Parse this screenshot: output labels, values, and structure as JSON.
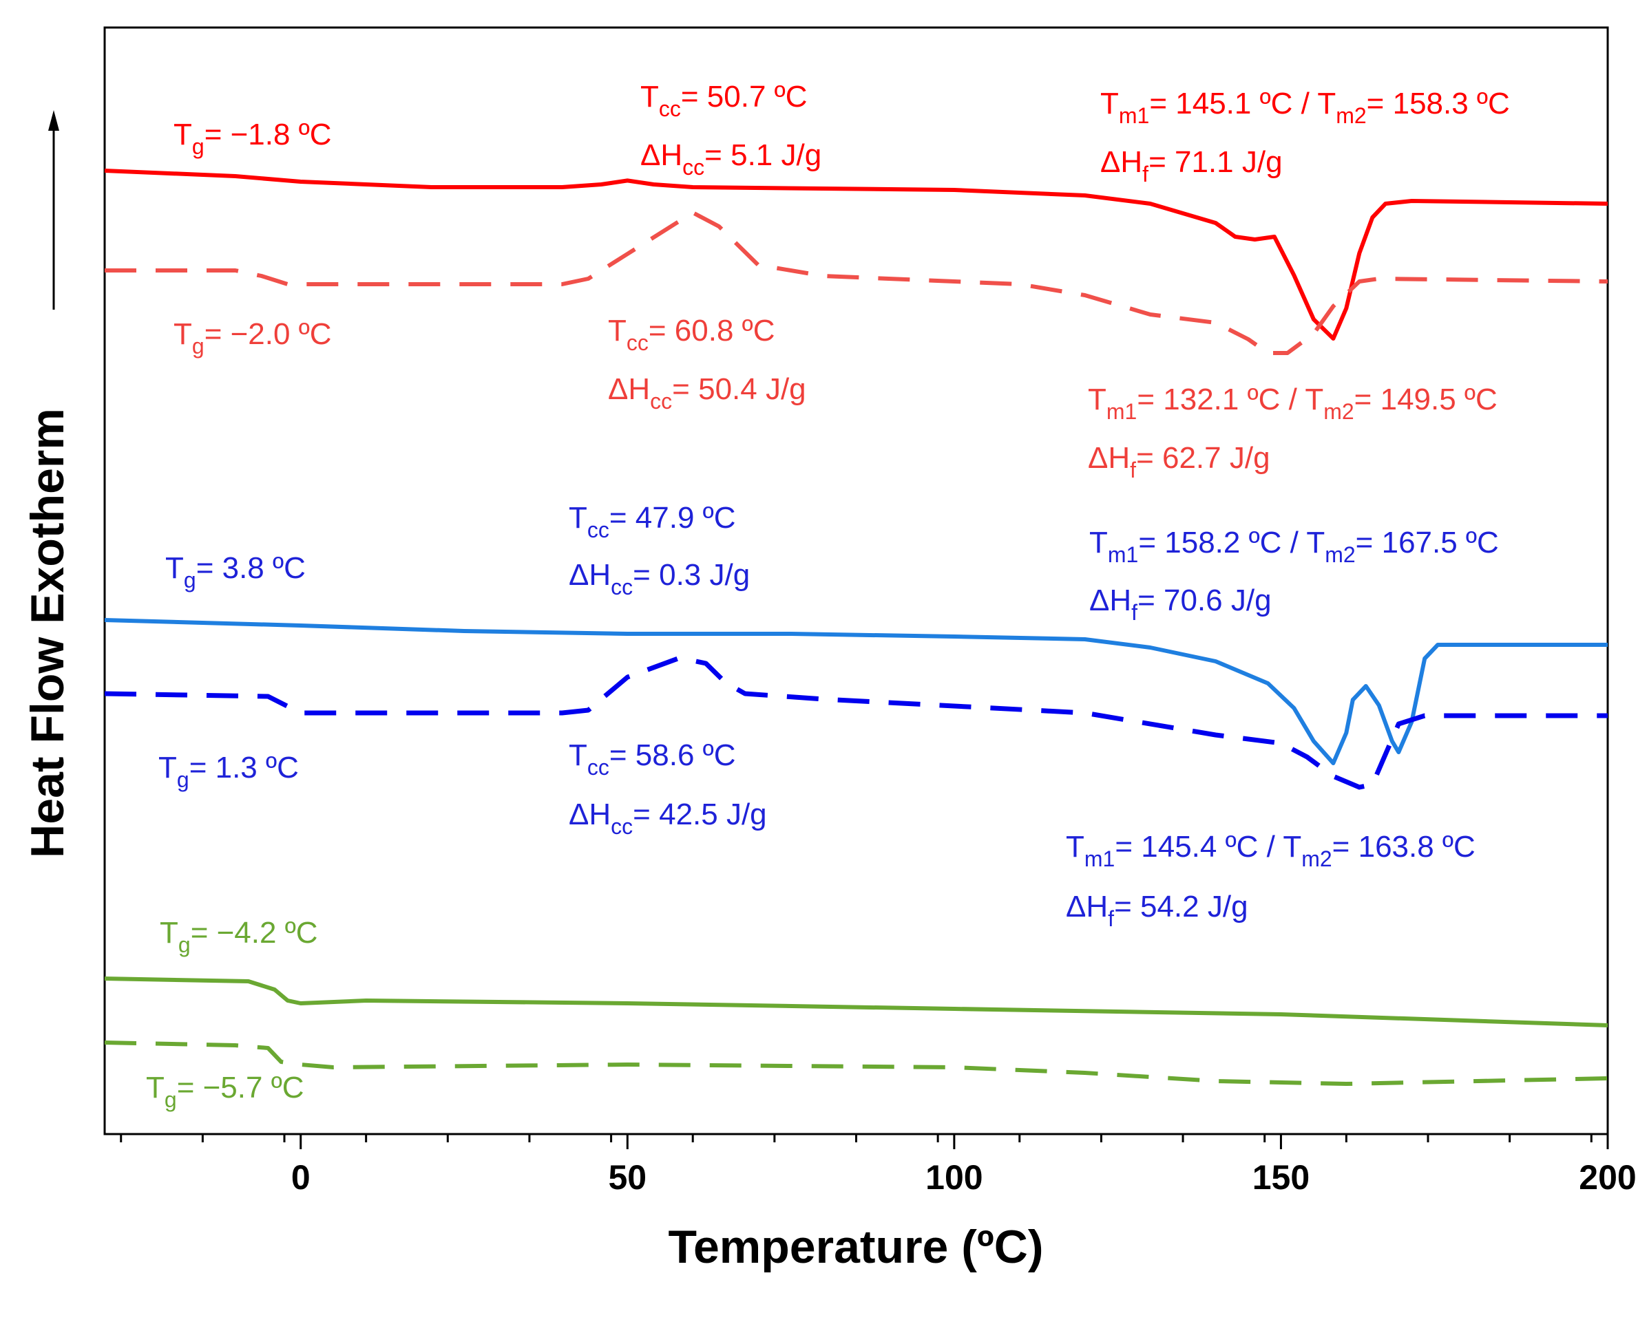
{
  "chart_data": {
    "type": "line",
    "title": "",
    "xlabel": "Temperature (ºC)",
    "ylabel": "Heat Flow Exotherm",
    "xlim": [
      -30,
      200
    ],
    "x_ticks": [
      0,
      50,
      100,
      150,
      200
    ],
    "x_minor_step": 12.5,
    "y_units": "arbitrary (stacked, offset curves)",
    "grid": false,
    "colors": {
      "red": "#ff0000",
      "red_dashed": "#f0504a",
      "blue": "#1f7fe0",
      "blue_dashed": "#0000ee",
      "green": "#6aa832"
    },
    "series": [
      {
        "name": "red-solid",
        "color": "#ff0000",
        "style": "solid",
        "points": [
          [
            -30,
            0.3
          ],
          [
            -10,
            0.2
          ],
          [
            0,
            0.1
          ],
          [
            20,
            0
          ],
          [
            40,
            0
          ],
          [
            46,
            0.05
          ],
          [
            50,
            0.12
          ],
          [
            54,
            0.05
          ],
          [
            60,
            0
          ],
          [
            100,
            -0.05
          ],
          [
            120,
            -0.15
          ],
          [
            130,
            -0.3
          ],
          [
            140,
            -0.65
          ],
          [
            143,
            -0.9
          ],
          [
            146,
            -0.95
          ],
          [
            149,
            -0.9
          ],
          [
            152,
            -1.6
          ],
          [
            155,
            -2.4
          ],
          [
            158,
            -2.75
          ],
          [
            160,
            -2.2
          ],
          [
            162,
            -1.2
          ],
          [
            164,
            -0.55
          ],
          [
            166,
            -0.3
          ],
          [
            170,
            -0.25
          ],
          [
            200,
            -0.3
          ]
        ]
      },
      {
        "name": "red-dashed",
        "color": "#f0504a",
        "style": "dashed",
        "points": [
          [
            -30,
            -1.35
          ],
          [
            -10,
            -1.35
          ],
          [
            -6,
            -1.45
          ],
          [
            -2,
            -1.6
          ],
          [
            5,
            -1.6
          ],
          [
            40,
            -1.6
          ],
          [
            44,
            -1.5
          ],
          [
            50,
            -1.05
          ],
          [
            60,
            -0.3
          ],
          [
            64,
            -0.55
          ],
          [
            70,
            -1.25
          ],
          [
            80,
            -1.45
          ],
          [
            110,
            -1.6
          ],
          [
            120,
            -1.8
          ],
          [
            130,
            -2.15
          ],
          [
            140,
            -2.3
          ],
          [
            145,
            -2.6
          ],
          [
            148,
            -2.85
          ],
          [
            151,
            -2.85
          ],
          [
            155,
            -2.5
          ],
          [
            158,
            -2.0
          ],
          [
            162,
            -1.55
          ],
          [
            165,
            -1.5
          ],
          [
            200,
            -1.55
          ]
        ]
      },
      {
        "name": "blue-solid",
        "color": "#1f7fe0",
        "style": "solid",
        "points": [
          [
            -30,
            0.25
          ],
          [
            0,
            0.15
          ],
          [
            25,
            0.05
          ],
          [
            50,
            0
          ],
          [
            75,
            0
          ],
          [
            100,
            -0.05
          ],
          [
            120,
            -0.1
          ],
          [
            130,
            -0.25
          ],
          [
            140,
            -0.5
          ],
          [
            148,
            -0.9
          ],
          [
            152,
            -1.35
          ],
          [
            155,
            -1.95
          ],
          [
            158,
            -2.35
          ],
          [
            160,
            -1.8
          ],
          [
            161,
            -1.2
          ],
          [
            163,
            -0.95
          ],
          [
            165,
            -1.3
          ],
          [
            167,
            -1.95
          ],
          [
            168,
            -2.15
          ],
          [
            170,
            -1.6
          ],
          [
            172,
            -0.45
          ],
          [
            174,
            -0.2
          ],
          [
            200,
            -0.2
          ]
        ]
      },
      {
        "name": "blue-dashed",
        "color": "#0000ee",
        "style": "dashed",
        "points": [
          [
            -30,
            -1.1
          ],
          [
            -5,
            -1.15
          ],
          [
            0,
            -1.45
          ],
          [
            20,
            -1.45
          ],
          [
            40,
            -1.45
          ],
          [
            44,
            -1.4
          ],
          [
            50,
            -0.8
          ],
          [
            58,
            -0.45
          ],
          [
            62,
            -0.55
          ],
          [
            65,
            -0.9
          ],
          [
            68,
            -1.1
          ],
          [
            80,
            -1.2
          ],
          [
            120,
            -1.45
          ],
          [
            140,
            -1.85
          ],
          [
            150,
            -2.0
          ],
          [
            154,
            -2.25
          ],
          [
            158,
            -2.6
          ],
          [
            162,
            -2.8
          ],
          [
            164,
            -2.75
          ],
          [
            166,
            -2.2
          ],
          [
            168,
            -1.65
          ],
          [
            172,
            -1.5
          ],
          [
            200,
            -1.5
          ]
        ]
      },
      {
        "name": "green-solid",
        "color": "#6aa832",
        "style": "solid",
        "points": [
          [
            -30,
            0
          ],
          [
            -8,
            -0.05
          ],
          [
            -4,
            -0.2
          ],
          [
            -2,
            -0.4
          ],
          [
            0,
            -0.45
          ],
          [
            10,
            -0.4
          ],
          [
            50,
            -0.45
          ],
          [
            100,
            -0.55
          ],
          [
            150,
            -0.65
          ],
          [
            200,
            -0.85
          ]
        ]
      },
      {
        "name": "green-dashed",
        "color": "#6aa832",
        "style": "dashed",
        "points": [
          [
            -30,
            -1.65
          ],
          [
            -10,
            -1.7
          ],
          [
            -5,
            -1.75
          ],
          [
            -3,
            -2.0
          ],
          [
            0,
            -2.05
          ],
          [
            5,
            -2.1
          ],
          [
            50,
            -2.05
          ],
          [
            100,
            -2.1
          ],
          [
            120,
            -2.2
          ],
          [
            140,
            -2.35
          ],
          [
            160,
            -2.4
          ],
          [
            200,
            -2.3
          ]
        ]
      }
    ]
  },
  "annotations": {
    "red_solid": {
      "tg": {
        "sym": "T",
        "sub": "g",
        "val": "= −1.8 ºC"
      },
      "tcc": {
        "sym": "T",
        "sub": "cc",
        "val": "= 50.7 ºC"
      },
      "hcc": {
        "sym": "ΔH",
        "sub": "cc",
        "val": "= 5.1 J/g"
      },
      "tm1": {
        "sym": "T",
        "sub": "m1",
        "val": "= 145.1 ºC / "
      },
      "tm2": {
        "sym": "T",
        "sub": "m2",
        "val": "= 158.3 ºC"
      },
      "hf": {
        "sym": "ΔH",
        "sub": "f",
        "val": "= 71.1 J/g"
      }
    },
    "red_dashed": {
      "tg": {
        "sym": "T",
        "sub": "g",
        "val": "= −2.0 ºC"
      },
      "tcc": {
        "sym": "T",
        "sub": "cc",
        "val": "= 60.8 ºC"
      },
      "hcc": {
        "sym": "ΔH",
        "sub": "cc",
        "val": "= 50.4 J/g"
      },
      "tm1": {
        "sym": "T",
        "sub": "m1",
        "val": "= 132.1 ºC / "
      },
      "tm2": {
        "sym": "T",
        "sub": "m2",
        "val": "= 149.5 ºC"
      },
      "hf": {
        "sym": "ΔH",
        "sub": "f",
        "val": "= 62.7 J/g"
      }
    },
    "blue_solid": {
      "tg": {
        "sym": "T",
        "sub": "g",
        "val": "= 3.8 ºC"
      },
      "tcc": {
        "sym": "T",
        "sub": "cc",
        "val": "= 47.9 ºC"
      },
      "hcc": {
        "sym": "ΔH",
        "sub": "cc",
        "val": "= 0.3 J/g"
      },
      "tm1": {
        "sym": "T",
        "sub": "m1",
        "val": "= 158.2 ºC / "
      },
      "tm2": {
        "sym": "T",
        "sub": "m2",
        "val": "= 167.5 ºC"
      },
      "hf": {
        "sym": "ΔH",
        "sub": "f",
        "val": "= 70.6 J/g"
      }
    },
    "blue_dashed": {
      "tg": {
        "sym": "T",
        "sub": "g",
        "val": "= 1.3 ºC"
      },
      "tcc": {
        "sym": "T",
        "sub": "cc",
        "val": "= 58.6 ºC"
      },
      "hcc": {
        "sym": "ΔH",
        "sub": "cc",
        "val": "= 42.5 J/g"
      },
      "tm1": {
        "sym": "T",
        "sub": "m1",
        "val": "= 145.4 ºC / "
      },
      "tm2": {
        "sym": "T",
        "sub": "m2",
        "val": "= 163.8 ºC"
      },
      "hf": {
        "sym": "ΔH",
        "sub": "f",
        "val": "= 54.2 J/g"
      }
    },
    "green_solid": {
      "tg": {
        "sym": "T",
        "sub": "g",
        "val": "= −4.2 ºC"
      }
    },
    "green_dashed": {
      "tg": {
        "sym": "T",
        "sub": "g",
        "val": "= −5.7 ºC"
      }
    }
  }
}
